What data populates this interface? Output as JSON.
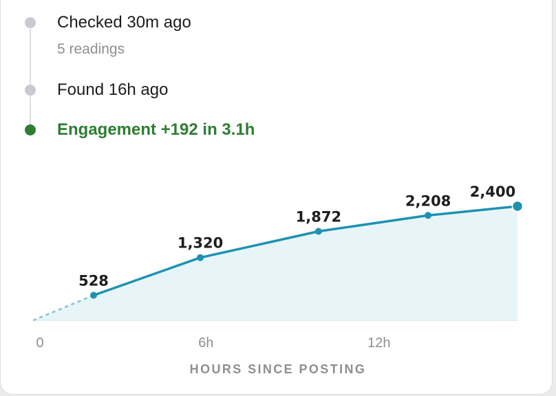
{
  "timeline": {
    "items": [
      {
        "title": "Checked 30m ago",
        "subtitle": "5 readings"
      },
      {
        "title": "Found 16h ago"
      },
      {
        "title": "Engagement +192 in 3.1h"
      }
    ]
  },
  "colors": {
    "line": "#1d92b0",
    "area": "#e8f5f8",
    "baseline_dash": "#7ec3d6",
    "active_dot": "#2e7d32",
    "inactive_dot": "#c9c9d3"
  },
  "chart_data": {
    "type": "area",
    "title": "",
    "xlabel": "HOURS SINCE POSTING",
    "ylabel": "",
    "x_ticks": [
      {
        "value": 0,
        "label": "0"
      },
      {
        "value": 6,
        "label": "6h"
      },
      {
        "value": 12,
        "label": "12h"
      }
    ],
    "xlim": [
      0,
      16.8
    ],
    "ylim": [
      0,
      2400
    ],
    "origin": {
      "x": 0,
      "y": 0
    },
    "points": [
      {
        "x": 2.1,
        "y": 528,
        "label": "528"
      },
      {
        "x": 5.8,
        "y": 1320,
        "label": "1,320"
      },
      {
        "x": 9.9,
        "y": 1872,
        "label": "1,872"
      },
      {
        "x": 13.7,
        "y": 2208,
        "label": "2,208"
      },
      {
        "x": 16.8,
        "y": 2400,
        "label": "2,400"
      }
    ],
    "grid": false,
    "legend": "none"
  }
}
